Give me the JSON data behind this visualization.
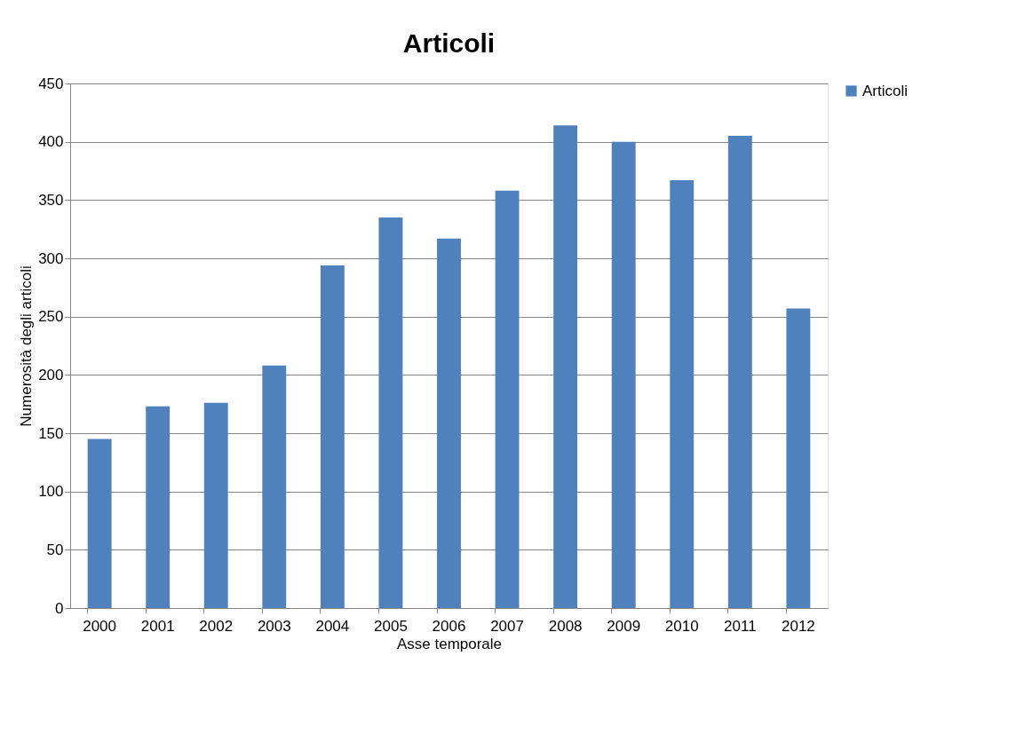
{
  "chart_data": {
    "type": "bar",
    "title": "Articoli",
    "xlabel": "Asse temporale",
    "ylabel": "Numerosità degli articoli",
    "categories": [
      "2000",
      "2001",
      "2002",
      "2003",
      "2004",
      "2005",
      "2006",
      "2007",
      "2008",
      "2009",
      "2010",
      "2011",
      "2012"
    ],
    "series": [
      {
        "name": "Articoli",
        "color": "#4f81bd",
        "values": [
          145,
          173,
          176,
          208,
          294,
          335,
          317,
          358,
          414,
          400,
          367,
          405,
          257
        ]
      }
    ],
    "ylim": [
      0,
      450
    ],
    "yticks": [
      0,
      50,
      100,
      150,
      200,
      250,
      300,
      350,
      400,
      450
    ],
    "grid": "y",
    "legend": "right"
  }
}
